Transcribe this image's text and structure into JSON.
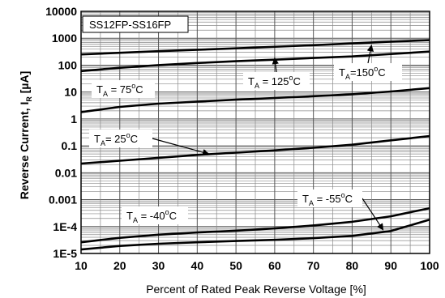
{
  "chart_data": {
    "type": "line",
    "title": "SS12FP-SS16FP",
    "xlabel": "Percent of Rated Peak Reverse Voltage [%]",
    "ylabel": {
      "main": "Reverse Current, I",
      "sub": "R",
      "unit": " [µA]"
    },
    "xlim": [
      10,
      100
    ],
    "ylim": [
      1e-05,
      10000
    ],
    "yscale": "log",
    "grid": true,
    "x_ticks": [
      "10",
      "20",
      "30",
      "40",
      "50",
      "60",
      "70",
      "80",
      "90",
      "100"
    ],
    "y_ticks": [
      "1E-5",
      "1E-4",
      "0.001",
      "0.01",
      "0.1",
      "1",
      "10",
      "100",
      "1000",
      "10000"
    ],
    "series": [
      {
        "name": "TA=150°C",
        "label": {
          "pre": "T",
          "sub": "A",
          "main": "=150",
          "sup": "o",
          "post": "C"
        },
        "x": [
          10,
          30,
          50,
          70,
          90,
          100
        ],
        "y": [
          250,
          330,
          420,
          550,
          750,
          850
        ]
      },
      {
        "name": "TA=125°C",
        "label": {
          "pre": "T",
          "sub": "A",
          "main": " = 125",
          "sup": "o",
          "post": "C"
        },
        "x": [
          10,
          20,
          30,
          40,
          50,
          60,
          70,
          80,
          90,
          100
        ],
        "y": [
          60,
          80,
          100,
          120,
          140,
          160,
          185,
          210,
          260,
          320
        ]
      },
      {
        "name": "TA=75°C",
        "label": {
          "pre": "T",
          "sub": "A",
          "main": " = 75",
          "sup": "o",
          "post": "C"
        },
        "x": [
          10,
          20,
          30,
          40,
          50,
          60,
          70,
          80,
          90,
          100
        ],
        "y": [
          1.8,
          2.8,
          3.7,
          4.4,
          5.2,
          6.0,
          7.0,
          8.3,
          10.5,
          14
        ]
      },
      {
        "name": "TA=25°C",
        "label": {
          "pre": "T",
          "sub": "A",
          "main": "= 25",
          "sup": "o",
          "post": "C"
        },
        "x": [
          10,
          20,
          30,
          40,
          50,
          60,
          70,
          80,
          90,
          100
        ],
        "y": [
          0.022,
          0.028,
          0.036,
          0.046,
          0.056,
          0.068,
          0.085,
          0.11,
          0.16,
          0.23
        ]
      },
      {
        "name": "TA=-55°C",
        "label": {
          "pre": "T",
          "sub": "A",
          "main": " = -55",
          "sup": "o",
          "post": "C"
        },
        "x": [
          10,
          20,
          30,
          40,
          50,
          60,
          70,
          80,
          90,
          100
        ],
        "y": [
          2.6e-05,
          3.8e-05,
          5e-05,
          6e-05,
          7e-05,
          8.5e-05,
          0.00011,
          0.00015,
          0.00024,
          0.00048
        ]
      },
      {
        "name": "TA=-40°C",
        "label": {
          "pre": "T",
          "sub": "A",
          "main": " = -40",
          "sup": "o",
          "post": "C"
        },
        "x": [
          10,
          20,
          30,
          40,
          50,
          60,
          70,
          80,
          90,
          100
        ],
        "y": [
          1.4e-05,
          1.9e-05,
          2.3e-05,
          2.6e-05,
          2.9e-05,
          3.2e-05,
          3.7e-05,
          4.5e-05,
          6.8e-05,
          0.00018
        ]
      }
    ]
  }
}
